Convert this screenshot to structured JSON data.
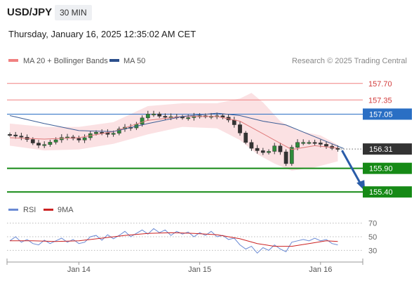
{
  "header": {
    "symbol": "USD/JPY",
    "timeframe": "30 MIN",
    "datetime": "Thursday, January 16, 2025 12:35:02 AM CET"
  },
  "legend": {
    "items": [
      {
        "label": "MA 20 + Bollinger Bands",
        "color": "#f08080"
      },
      {
        "label": "MA 50",
        "color": "#2b4f8c"
      }
    ],
    "credit": "Research © 2025 Trading Central"
  },
  "chart_data": [
    {
      "type": "candlestick",
      "ylim": [
        155.15,
        157.98
      ],
      "x_tick_labels": [
        "Jan 14",
        "Jan 15",
        "Jan 16"
      ],
      "x_tick_positions": [
        12,
        33,
        54
      ],
      "n_bars": 58,
      "close_points": [
        [
          0,
          156.62
        ],
        [
          3,
          156.55
        ],
        [
          5,
          156.4
        ],
        [
          6,
          156.38
        ],
        [
          8,
          156.48
        ],
        [
          10,
          156.58
        ],
        [
          12,
          156.52
        ],
        [
          13,
          156.48
        ],
        [
          14,
          156.62
        ],
        [
          16,
          156.68
        ],
        [
          18,
          156.6
        ],
        [
          20,
          156.78
        ],
        [
          22,
          156.75
        ],
        [
          23,
          156.92
        ],
        [
          24,
          157.02
        ],
        [
          25,
          157.08
        ],
        [
          27,
          156.98
        ],
        [
          29,
          157.0
        ],
        [
          31,
          156.96
        ],
        [
          33,
          157.02
        ],
        [
          35,
          157.0
        ],
        [
          37,
          157.02
        ],
        [
          38,
          156.95
        ],
        [
          39,
          156.9
        ],
        [
          40,
          156.75
        ],
        [
          41,
          156.55
        ],
        [
          42,
          156.35
        ],
        [
          43,
          156.3
        ],
        [
          44,
          156.25
        ],
        [
          45,
          156.22
        ],
        [
          46,
          156.3
        ],
        [
          47,
          156.45
        ],
        [
          47.5,
          156.25
        ],
        [
          48,
          155.92
        ],
        [
          48.5,
          156.0
        ],
        [
          49,
          156.25
        ],
        [
          50,
          156.44
        ],
        [
          51,
          156.46
        ],
        [
          52,
          156.44
        ],
        [
          53,
          156.46
        ],
        [
          54,
          156.42
        ],
        [
          55,
          156.4
        ],
        [
          56,
          156.34
        ],
        [
          57,
          156.31
        ]
      ],
      "ma20_points": [
        [
          0,
          156.55
        ],
        [
          6,
          156.52
        ],
        [
          12,
          156.55
        ],
        [
          18,
          156.68
        ],
        [
          24,
          156.92
        ],
        [
          30,
          157.0
        ],
        [
          36,
          157.0
        ],
        [
          40,
          156.9
        ],
        [
          43,
          156.7
        ],
        [
          46,
          156.5
        ],
        [
          49,
          156.3
        ],
        [
          53,
          156.38
        ],
        [
          57,
          156.33
        ]
      ],
      "bollinger_upper": [
        [
          0,
          156.85
        ],
        [
          6,
          156.78
        ],
        [
          12,
          156.78
        ],
        [
          18,
          156.88
        ],
        [
          24,
          157.22
        ],
        [
          30,
          157.28
        ],
        [
          36,
          157.28
        ],
        [
          40,
          157.38
        ],
        [
          42,
          157.5
        ],
        [
          44,
          157.3
        ],
        [
          47,
          156.9
        ],
        [
          50,
          156.7
        ],
        [
          54,
          156.6
        ],
        [
          57,
          156.4
        ]
      ],
      "bollinger_lower": [
        [
          0,
          156.38
        ],
        [
          6,
          156.28
        ],
        [
          12,
          156.3
        ],
        [
          18,
          156.42
        ],
        [
          24,
          156.62
        ],
        [
          30,
          156.78
        ],
        [
          36,
          156.75
        ],
        [
          40,
          156.5
        ],
        [
          43,
          156.2
        ],
        [
          46,
          156.0
        ],
        [
          49,
          155.85
        ],
        [
          53,
          155.92
        ],
        [
          57,
          156.05
        ]
      ],
      "ma50_points": [
        [
          0,
          157.02
        ],
        [
          6,
          156.85
        ],
        [
          12,
          156.7
        ],
        [
          18,
          156.68
        ],
        [
          24,
          156.85
        ],
        [
          30,
          157.0
        ],
        [
          36,
          157.07
        ],
        [
          40,
          157.02
        ],
        [
          44,
          156.9
        ],
        [
          48,
          156.82
        ],
        [
          52,
          156.62
        ],
        [
          56,
          156.42
        ],
        [
          58,
          156.32
        ]
      ],
      "levels": [
        {
          "value": 157.7,
          "label": "157.70",
          "kind": "resistance",
          "color": "#f08080"
        },
        {
          "value": 157.35,
          "label": "157.35",
          "kind": "resistance",
          "color": "#f08080"
        },
        {
          "value": 157.05,
          "label": "157.05",
          "kind": "pivot",
          "color": "#2a6fc4"
        },
        {
          "value": 156.31,
          "label": "156.31",
          "kind": "last-price",
          "color": "#333333"
        },
        {
          "value": 155.9,
          "label": "155.90",
          "kind": "support",
          "color": "#168a16"
        },
        {
          "value": 155.4,
          "label": "155.40",
          "kind": "support",
          "color": "#168a16"
        }
      ],
      "forecast_arrow": {
        "from": [
          57,
          156.31
        ],
        "to": [
          61,
          155.4
        ],
        "color": "#2a5ca8"
      }
    },
    {
      "type": "line",
      "title": "RSI",
      "legend": [
        {
          "label": "RSI",
          "color": "#6a8ad4"
        },
        {
          "label": "9MA",
          "color": "#cc2222"
        }
      ],
      "ylim": [
        18,
        80
      ],
      "y_ticks": [
        70,
        50,
        30
      ],
      "rsi_points": [
        [
          0,
          44
        ],
        [
          1,
          50
        ],
        [
          2,
          42
        ],
        [
          3,
          46
        ],
        [
          4,
          40
        ],
        [
          5,
          38
        ],
        [
          6,
          45
        ],
        [
          7,
          40
        ],
        [
          8,
          44
        ],
        [
          9,
          48
        ],
        [
          10,
          42
        ],
        [
          11,
          46
        ],
        [
          12,
          40
        ],
        [
          13,
          42
        ],
        [
          14,
          50
        ],
        [
          15,
          52
        ],
        [
          16,
          45
        ],
        [
          17,
          53
        ],
        [
          18,
          47
        ],
        [
          19,
          52
        ],
        [
          20,
          58
        ],
        [
          21,
          50
        ],
        [
          22,
          55
        ],
        [
          23,
          60
        ],
        [
          24,
          54
        ],
        [
          25,
          62
        ],
        [
          26,
          56
        ],
        [
          27,
          60
        ],
        [
          28,
          52
        ],
        [
          29,
          58
        ],
        [
          30,
          54
        ],
        [
          31,
          57
        ],
        [
          32,
          50
        ],
        [
          33,
          56
        ],
        [
          34,
          52
        ],
        [
          35,
          58
        ],
        [
          36,
          50
        ],
        [
          37,
          52
        ],
        [
          38,
          46
        ],
        [
          39,
          48
        ],
        [
          40,
          38
        ],
        [
          41,
          32
        ],
        [
          42,
          36
        ],
        [
          43,
          26
        ],
        [
          44,
          34
        ],
        [
          45,
          30
        ],
        [
          46,
          38
        ],
        [
          47,
          32
        ],
        [
          48,
          28
        ],
        [
          49,
          42
        ],
        [
          50,
          44
        ],
        [
          51,
          46
        ],
        [
          52,
          44
        ],
        [
          53,
          48
        ],
        [
          54,
          44
        ],
        [
          55,
          46
        ],
        [
          56,
          40
        ],
        [
          57,
          38
        ]
      ],
      "ma9_points": [
        [
          0,
          44
        ],
        [
          4,
          44
        ],
        [
          8,
          43
        ],
        [
          12,
          44
        ],
        [
          16,
          48
        ],
        [
          20,
          52
        ],
        [
          24,
          55
        ],
        [
          28,
          56
        ],
        [
          32,
          55
        ],
        [
          36,
          53
        ],
        [
          40,
          47
        ],
        [
          43,
          40
        ],
        [
          46,
          36
        ],
        [
          49,
          36
        ],
        [
          52,
          40
        ],
        [
          55,
          44
        ],
        [
          57,
          43
        ]
      ]
    }
  ]
}
